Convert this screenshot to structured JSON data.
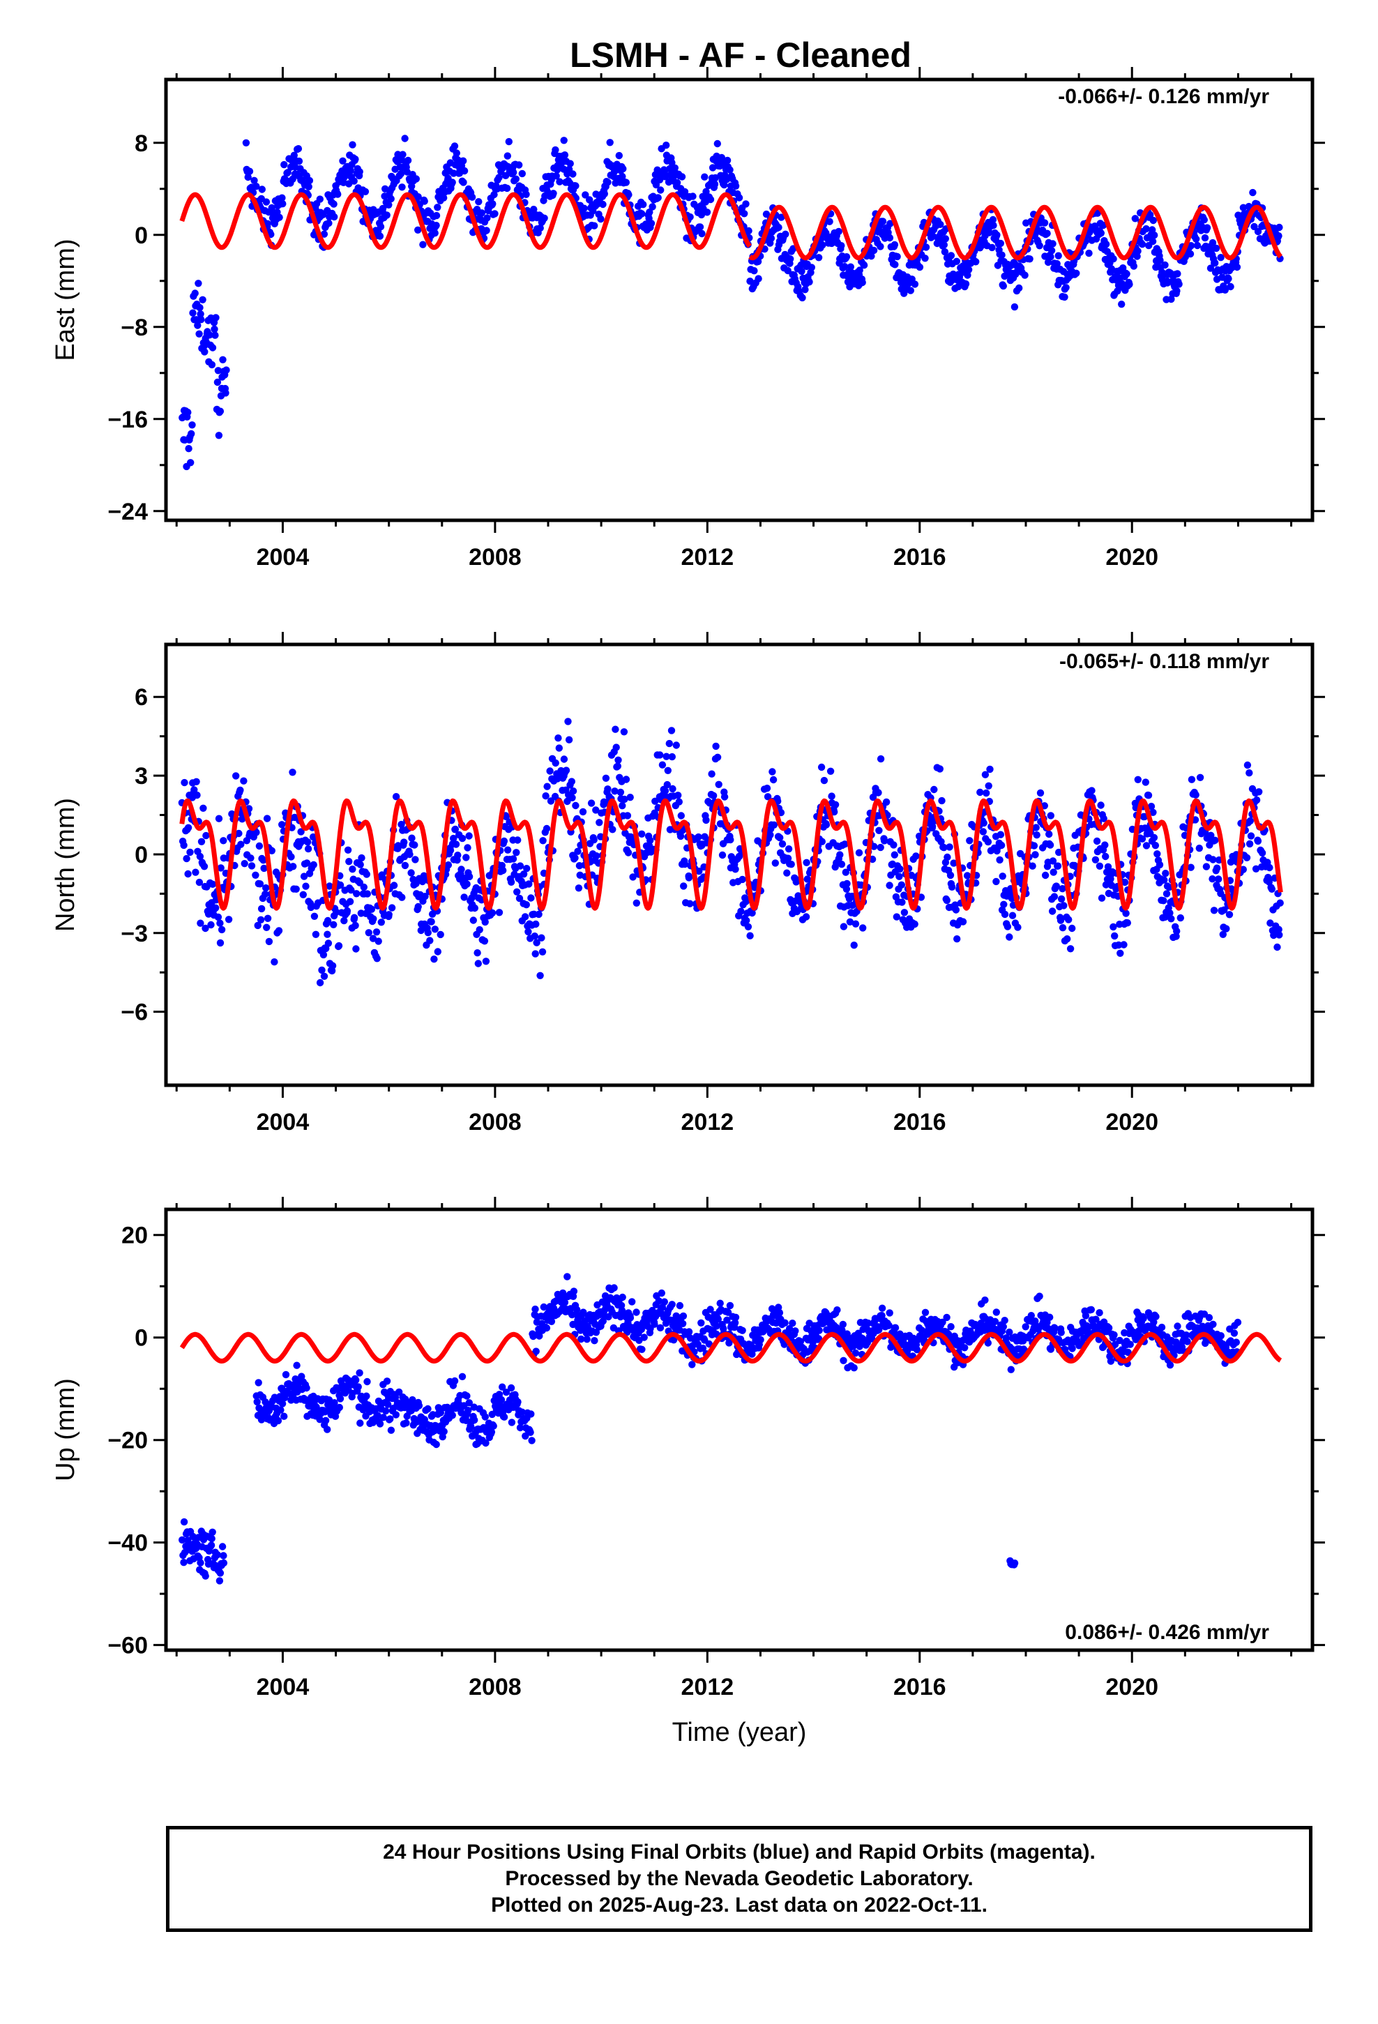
{
  "title": "LSMH  - AF - Cleaned",
  "colors": {
    "final_orbits": "#0000ff",
    "model": "#ff0000",
    "frame": "#000000"
  },
  "footer": {
    "line1": "24 Hour Positions Using Final Orbits (blue) and Rapid Orbits (magenta).",
    "line2": "Processed by the Nevada Geodetic Laboratory.",
    "line3": "Plotted on 2025-Aug-23. Last data on 2022-Oct-11."
  },
  "chart_data": [
    {
      "type": "scatter",
      "id": "east",
      "title": "",
      "xlabel": "",
      "ylabel": "East (mm)",
      "rate": "-0.066+/- 0.126 mm/yr",
      "xlim": [
        2001.8,
        2023.4
      ],
      "ylim": [
        -24.8,
        13.5
      ],
      "xticks": [
        2004,
        2008,
        2012,
        2016,
        2020
      ],
      "yticks": [
        -24,
        -16,
        -8,
        0,
        8
      ],
      "segments": [
        {
          "start": 2002.1,
          "end": 2002.3,
          "mean": -19,
          "amp": 2.0,
          "spread": 3.0
        },
        {
          "start": 2002.3,
          "end": 2002.75,
          "mean": -8,
          "amp": 1.5,
          "spread": 2.2
        },
        {
          "start": 2002.75,
          "end": 2002.95,
          "mean": -13,
          "amp": 0.5,
          "spread": 3.0
        },
        {
          "start": 2003.3,
          "end": 2012.8,
          "mean": 3.5,
          "amp": 2.5,
          "spread": 1.6
        },
        {
          "start": 2012.8,
          "end": 2022.0,
          "mean": -1.6,
          "amp": 2.4,
          "spread": 1.5
        },
        {
          "start": 2022.0,
          "end": 2022.8,
          "mean": 0.5,
          "amp": 1.0,
          "spread": 1.5
        }
      ],
      "model": [
        {
          "start": 2002.1,
          "end": 2012.8,
          "mean": 1.2,
          "amp": 2.3,
          "semi": 0.0
        },
        {
          "start": 2012.8,
          "end": 2022.8,
          "mean": 0.2,
          "amp": 2.2,
          "semi": 0.0
        }
      ]
    },
    {
      "type": "scatter",
      "id": "north",
      "title": "",
      "xlabel": "",
      "ylabel": "North (mm)",
      "rate": "-0.065+/- 0.118 mm/yr",
      "xlim": [
        2001.8,
        2023.4
      ],
      "ylim": [
        -8.8,
        8.0
      ],
      "xticks": [
        2004,
        2008,
        2012,
        2016,
        2020
      ],
      "yticks": [
        -6,
        -3,
        0,
        3,
        6
      ],
      "segments": [
        {
          "start": 2002.1,
          "end": 2004.7,
          "mean": -0.3,
          "amp": 1.4,
          "spread": 1.8
        },
        {
          "start": 2004.7,
          "end": 2005.4,
          "mean": -2.5,
          "amp": 1.0,
          "spread": 2.0
        },
        {
          "start": 2005.4,
          "end": 2008.9,
          "mean": -1.0,
          "amp": 1.6,
          "spread": 1.5
        },
        {
          "start": 2008.9,
          "end": 2012.2,
          "mean": 1.2,
          "amp": 1.8,
          "spread": 1.6
        },
        {
          "start": 2012.2,
          "end": 2022.8,
          "mean": -0.2,
          "amp": 1.8,
          "spread": 1.4
        }
      ],
      "model": [
        {
          "start": 2002.1,
          "end": 2022.8,
          "mean": 0.4,
          "amp": 1.6,
          "semi": 0.9
        }
      ]
    },
    {
      "type": "scatter",
      "id": "up",
      "title": "",
      "xlabel": "Time (year)",
      "ylabel": "Up (mm)",
      "rate": "0.086+/- 0.426 mm/yr",
      "xlim": [
        2001.8,
        2023.4
      ],
      "ylim": [
        -61,
        25
      ],
      "xticks": [
        2004,
        2008,
        2012,
        2016,
        2020
      ],
      "yticks": [
        -60,
        -40,
        -20,
        0,
        20
      ],
      "segments": [
        {
          "start": 2002.1,
          "end": 2002.9,
          "mean": -42,
          "amp": 1.0,
          "spread": 3.6
        },
        {
          "start": 2003.5,
          "end": 2006.0,
          "mean": -12,
          "amp": 2.5,
          "spread": 3.3
        },
        {
          "start": 2006.0,
          "end": 2008.7,
          "mean": -15,
          "amp": 2.5,
          "spread": 3.3
        },
        {
          "start": 2008.7,
          "end": 2011.2,
          "mean": 4.0,
          "amp": 2.5,
          "spread": 3.3
        },
        {
          "start": 2011.2,
          "end": 2012.6,
          "mean": 1.0,
          "amp": 2.5,
          "spread": 3.6
        },
        {
          "start": 2012.6,
          "end": 2022.0,
          "mean": 0.5,
          "amp": 2.5,
          "spread": 3.0
        },
        {
          "start": 2017.7,
          "end": 2017.8,
          "mean": -44,
          "amp": 0.0,
          "spread": 0.6
        }
      ],
      "model": [
        {
          "start": 2002.1,
          "end": 2022.8,
          "mean": -2.0,
          "amp": 2.6,
          "semi": 0.0
        }
      ]
    }
  ]
}
